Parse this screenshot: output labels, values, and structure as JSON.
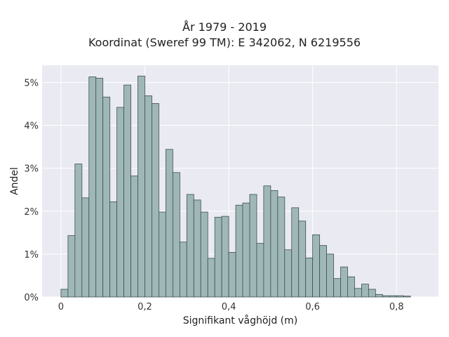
{
  "title": {
    "line1": "År 1979 - 2019",
    "line2": "Koordinat (Sweref 99 TM): E 342062, N 6219556"
  },
  "colors": {
    "plot_background": "#eaeaf2",
    "grid": "#ffffff",
    "bar_fill": "#9fb8b7",
    "bar_edge": "#3d4f4e"
  },
  "chart_data": {
    "type": "bar",
    "xlabel": "Signifikant våghöjd (m)",
    "ylabel": "Andel",
    "xlim": [
      -0.045,
      0.9
    ],
    "ylim": [
      0,
      5.4
    ],
    "grid": true,
    "legend": "none",
    "x_ticks": [
      0,
      0.2,
      0.4,
      0.6,
      0.8
    ],
    "x_tick_labels": [
      "0",
      "0,2",
      "0,4",
      "0,6",
      "0,8"
    ],
    "y_ticks": [
      0,
      1,
      2,
      3,
      4,
      5
    ],
    "y_tick_labels": [
      "0%",
      "1%",
      "2%",
      "3%",
      "4%",
      "5%"
    ],
    "bin_width": 0.0167,
    "bin_starts": [
      0.0,
      0.0167,
      0.0333,
      0.05,
      0.0667,
      0.0833,
      0.1,
      0.1167,
      0.1333,
      0.15,
      0.1667,
      0.1833,
      0.2,
      0.2167,
      0.2333,
      0.25,
      0.2667,
      0.2833,
      0.3,
      0.3167,
      0.3333,
      0.35,
      0.3667,
      0.3833,
      0.4,
      0.4167,
      0.4333,
      0.45,
      0.4667,
      0.4833,
      0.5,
      0.5167,
      0.5333,
      0.55,
      0.5667,
      0.5833,
      0.6,
      0.6167,
      0.6333,
      0.65,
      0.6667,
      0.6833,
      0.7,
      0.7167,
      0.7333,
      0.75,
      0.7667,
      0.7833,
      0.8,
      0.8167,
      0.8333
    ],
    "values": [
      0.18,
      1.43,
      3.1,
      2.31,
      5.13,
      5.1,
      4.66,
      2.22,
      4.42,
      4.94,
      2.82,
      5.15,
      4.69,
      4.51,
      1.98,
      3.44,
      2.9,
      1.28,
      2.39,
      2.26,
      1.98,
      0.9,
      1.86,
      1.88,
      1.04,
      2.14,
      2.19,
      2.39,
      1.25,
      2.59,
      2.48,
      2.33,
      1.1,
      2.08,
      1.77,
      0.91,
      1.45,
      1.2,
      1.0,
      0.43,
      0.7,
      0.47,
      0.2,
      0.3,
      0.18,
      0.06,
      0.03,
      0.03,
      0.03,
      0.02,
      0.0
    ]
  }
}
